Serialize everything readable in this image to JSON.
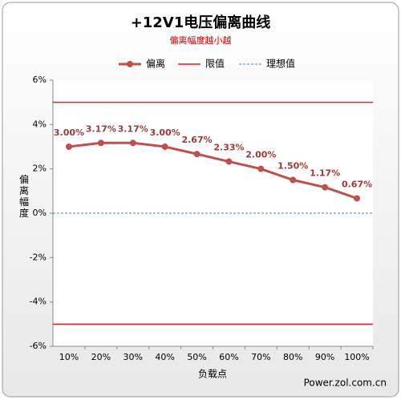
{
  "chart_data": {
    "type": "line",
    "title": "+12V1电压偏离曲线",
    "subtitle": "偏离幅度越小越",
    "x_label": "负载点",
    "y_label": "偏离幅度",
    "source": "Power.zol.com.cn",
    "categories": [
      "10%",
      "20%",
      "30%",
      "40%",
      "50%",
      "60%",
      "70%",
      "80%",
      "90%",
      "100%"
    ],
    "series": [
      {
        "name": "偏离",
        "color": "#c0504d",
        "values": [
          3.0,
          3.17,
          3.17,
          3.0,
          2.67,
          2.33,
          2.0,
          1.5,
          1.17,
          0.67
        ],
        "value_labels": [
          "3.00%",
          "3.17%",
          "3.17%",
          "3.00%",
          "2.67%",
          "2.33%",
          "2.00%",
          "1.50%",
          "1.17%",
          "0.67%"
        ]
      },
      {
        "name": "限值",
        "color": "#e02020",
        "values": [
          5,
          5,
          5,
          5,
          5,
          5,
          5,
          5,
          5,
          5
        ],
        "lower_values": [
          -5,
          -5,
          -5,
          -5,
          -5,
          -5,
          -5,
          -5,
          -5,
          -5
        ]
      },
      {
        "name": "理想值",
        "color": "#4a7ebb",
        "values": [
          0,
          0,
          0,
          0,
          0,
          0,
          0,
          0,
          0,
          0
        ],
        "dashed": true
      }
    ],
    "ylim": [
      -6,
      6
    ],
    "yticks": [
      {
        "value": -6,
        "label": "-6%"
      },
      {
        "value": -4,
        "label": "-4%"
      },
      {
        "value": -2,
        "label": "-2%"
      },
      {
        "value": 0,
        "label": "0%"
      },
      {
        "value": 2,
        "label": "2%"
      },
      {
        "value": 4,
        "label": "4%"
      },
      {
        "value": 6,
        "label": "6%"
      }
    ],
    "grid": false
  }
}
